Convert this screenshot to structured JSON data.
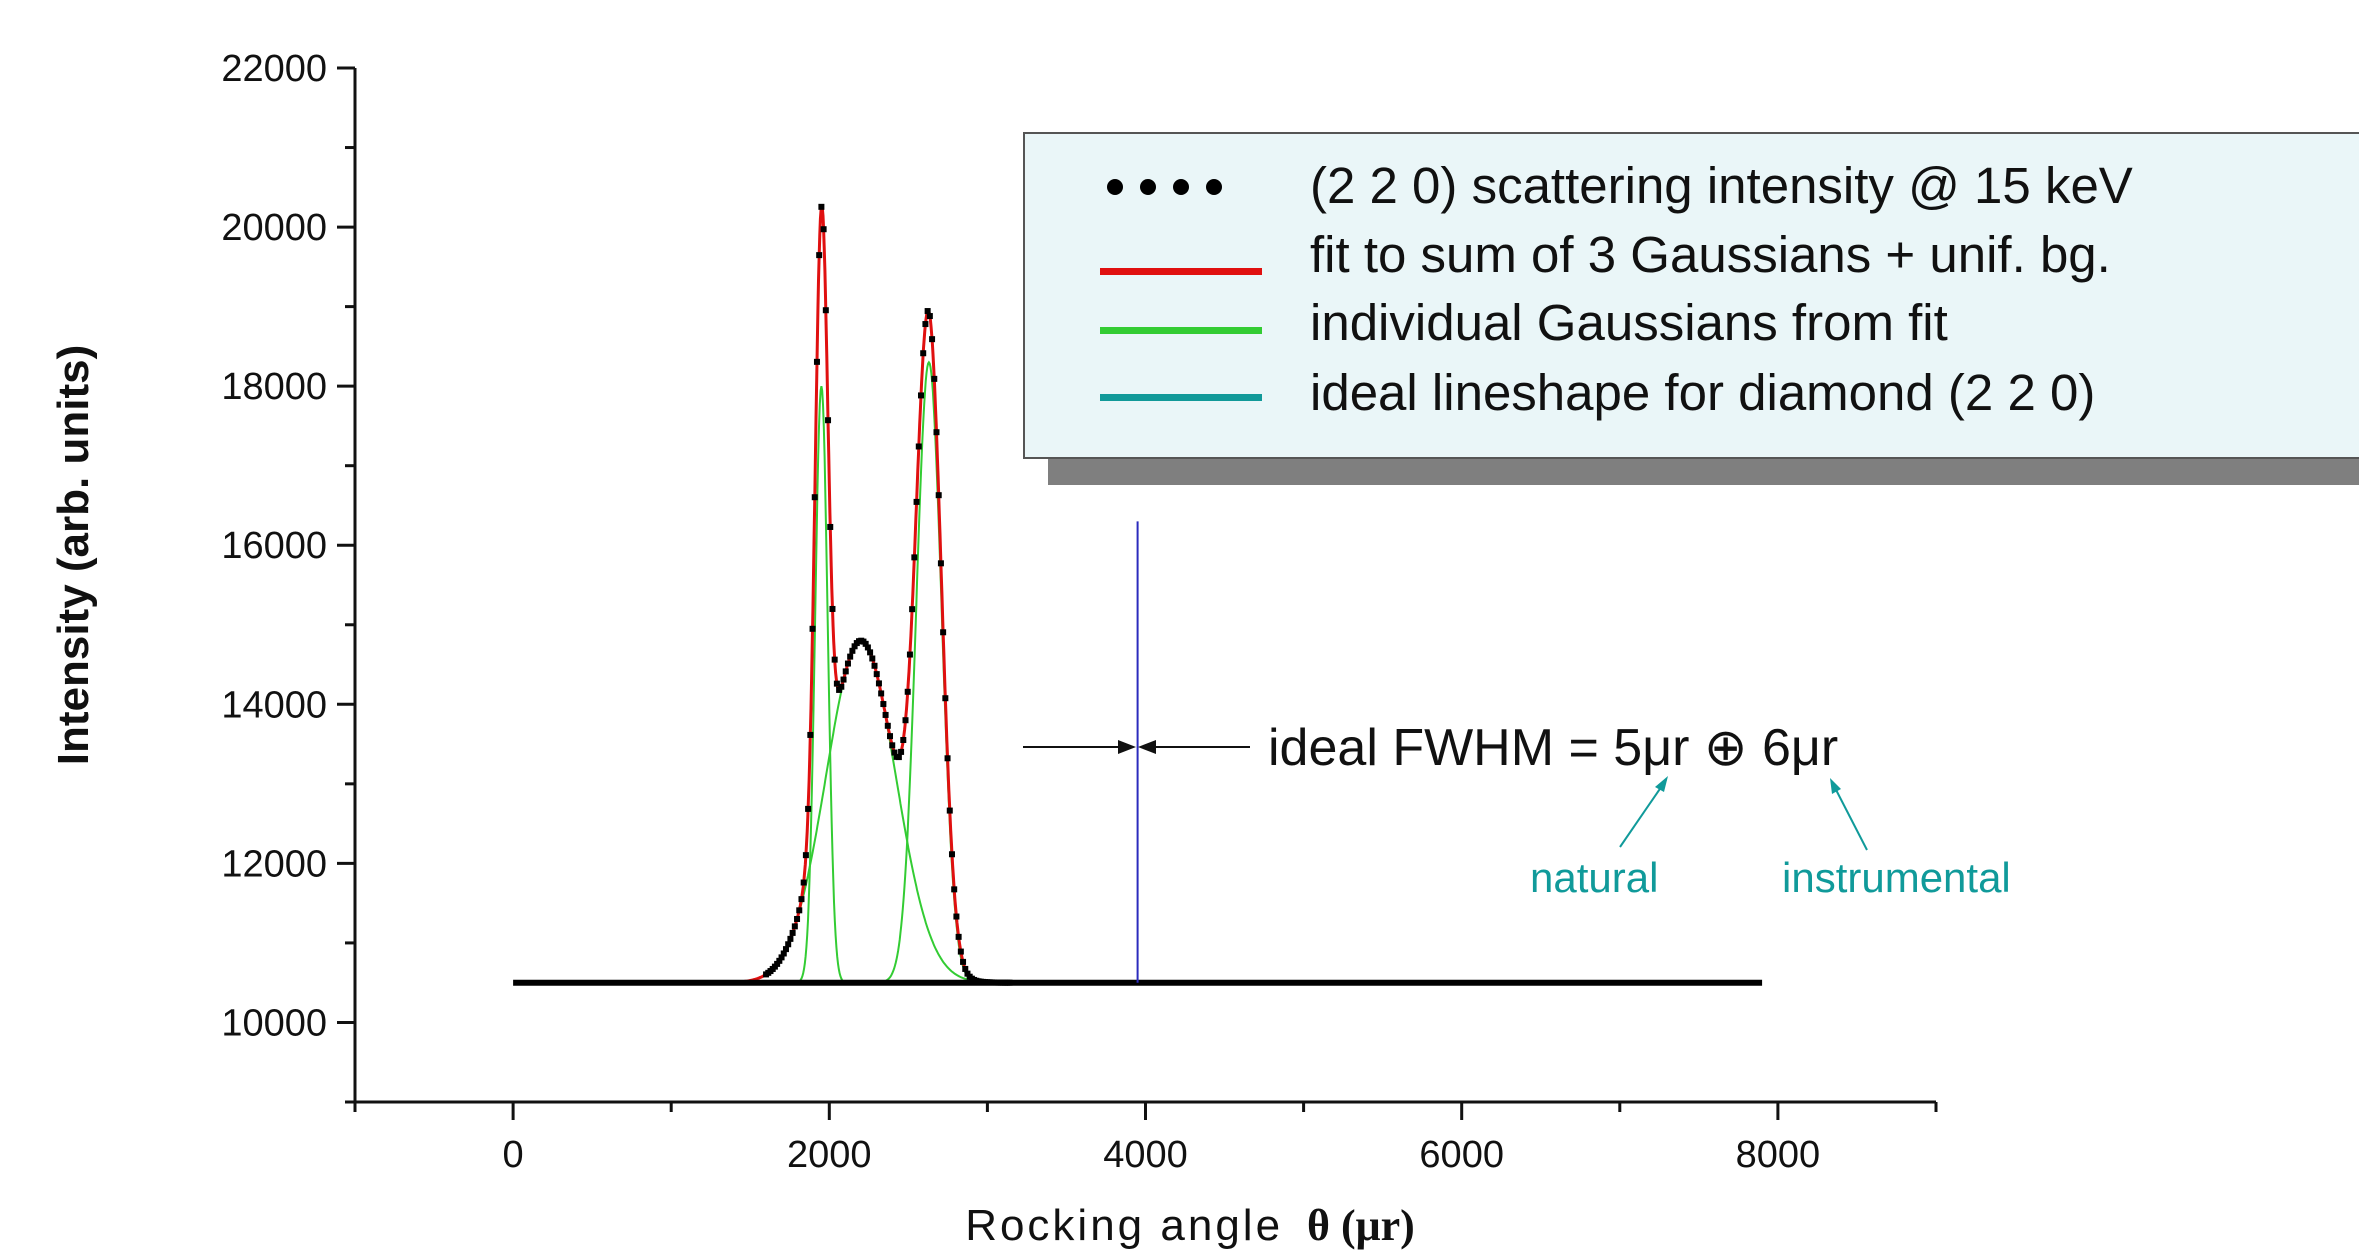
{
  "colors": {
    "data": "#000000",
    "fit": "#e01010",
    "gauss": "#33cc33",
    "ideal": "#119999",
    "marker_line": "#2b2bbd",
    "annotation": "#109a9a",
    "legend_bg": "#eaf6f8",
    "legend_shadow": "#7f7f7f"
  },
  "chart_data": {
    "type": "line",
    "xlabel_text": "Rocking angle",
    "xlabel_symbol": "θ (μr)",
    "ylabel": "Intensity (arb. units)",
    "xlim": [
      -1000,
      9000
    ],
    "ylim": [
      9000,
      22000
    ],
    "x_ticks": [
      0,
      2000,
      4000,
      6000,
      8000
    ],
    "y_ticks": [
      10000,
      12000,
      14000,
      16000,
      18000,
      20000,
      22000
    ],
    "x_tick_labels": [
      "0",
      "2000",
      "4000",
      "6000",
      "8000"
    ],
    "y_tick_labels": [
      "10000",
      "12000",
      "14000",
      "16000",
      "18000",
      "20000",
      "22000"
    ],
    "background": 10500,
    "gaussians": [
      {
        "center": 1950,
        "amplitude": 7500,
        "sigma": 40
      },
      {
        "center": 2200,
        "amplitude": 4300,
        "sigma": 220
      },
      {
        "center": 2630,
        "amplitude": 7800,
        "sigma": 80
      }
    ],
    "ideal_lineshape": {
      "x_start": 0,
      "x_end": 7900,
      "y": 10500
    },
    "marker_line_x": 3950,
    "marker_line_ytop": 16300,
    "series": [
      {
        "name": "(2 2 0) scattering intensity @ 15 keV",
        "style": "dots"
      },
      {
        "name": "fit to sum of 3 Gaussians + unif. bg.",
        "style": "line"
      },
      {
        "name": "individual Gaussians from fit",
        "style": "line"
      },
      {
        "name": "ideal lineshape for diamond (2 2 0)",
        "style": "line"
      }
    ],
    "grid": false,
    "legend_position": "top-right"
  },
  "annotation": {
    "main": "ideal FWHM = 5μr ⊕ 6μr",
    "natural": "natural",
    "instrumental": "instrumental"
  }
}
